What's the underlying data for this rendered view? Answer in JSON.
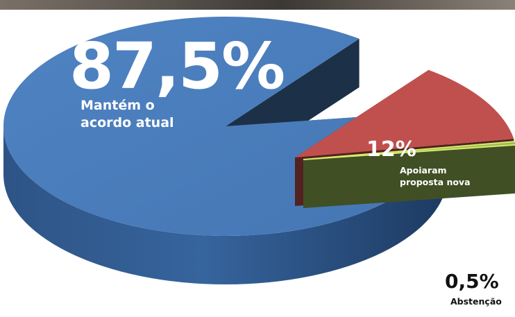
{
  "chart_data": {
    "type": "pie",
    "style": "3d-exploded",
    "slices": [
      {
        "value": 87.5,
        "value_label": "87,5%",
        "text": [
          "Mantém o",
          "acordo atual"
        ],
        "color": "#4a7ebb"
      },
      {
        "value": 12,
        "value_label": "12%",
        "text": [
          "Apoiaram",
          "proposta nova"
        ],
        "color": "#c0504d"
      },
      {
        "value": 0.5,
        "value_label": "0,5%",
        "text": [
          "Abstenção"
        ],
        "color": "#9bbb59"
      }
    ]
  }
}
